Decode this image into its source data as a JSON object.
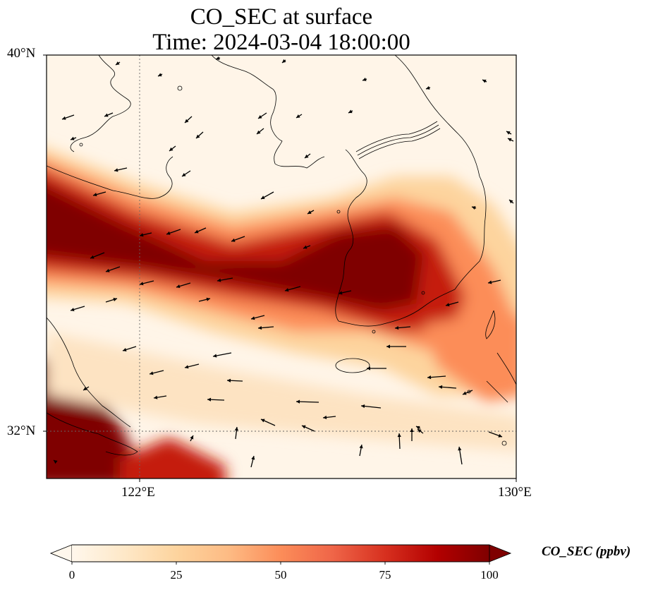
{
  "title": {
    "line1": "CO_SEC at surface",
    "line2": "Time: 2024-03-04 18:00:00"
  },
  "map": {
    "variable": "CO_SEC",
    "level": "surface",
    "projection": "PlateCarree",
    "extent": {
      "lon_min": 120,
      "lon_max": 130,
      "lat_min": 31,
      "lat_max": 40
    },
    "gridlines": {
      "style": "dotted",
      "lon": [
        122
      ],
      "lat": [
        32
      ]
    },
    "x_ticks": [
      "122°E",
      "130°E"
    ],
    "y_ticks": [
      "40°N",
      "32°N"
    ],
    "features": [
      "coastline",
      "wind-vectors",
      "filled-concentration-field"
    ]
  },
  "colorbar": {
    "label": "CO_SEC (ppbv)",
    "colormap": "OrRd",
    "min": 0,
    "max": 100,
    "extend": "both",
    "ticks": [
      "0",
      "25",
      "50",
      "75",
      "100"
    ],
    "stops": [
      "#fff7ec",
      "#fee8c8",
      "#fdd49e",
      "#fdbb84",
      "#fc8d59",
      "#ef6548",
      "#d7301f",
      "#b30000",
      "#7f0000"
    ]
  }
}
